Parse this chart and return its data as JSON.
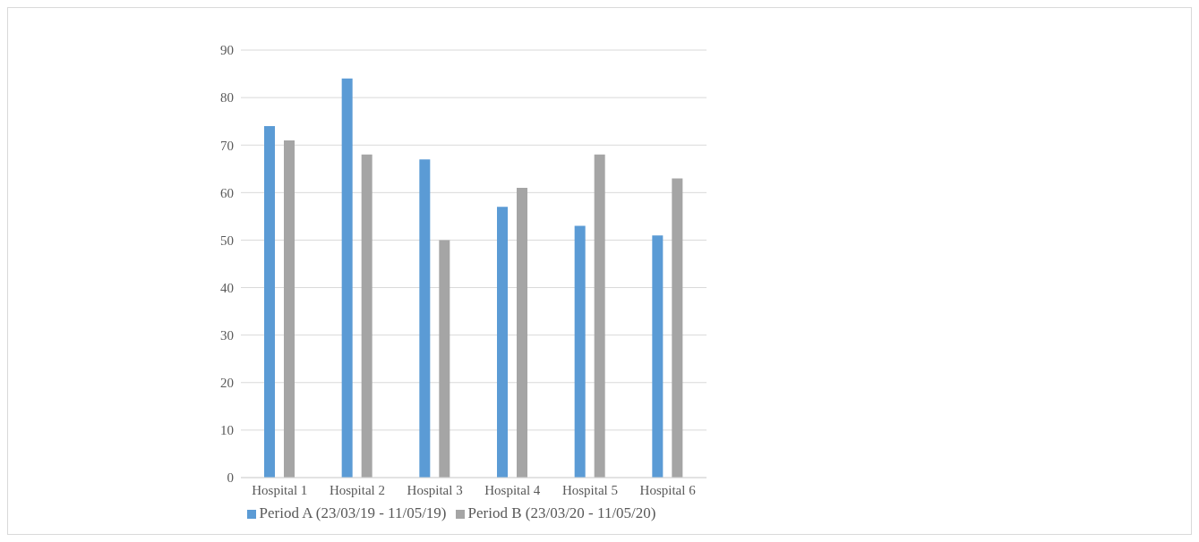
{
  "chart_data": {
    "type": "bar",
    "categories": [
      "Hospital 1",
      "Hospital 2",
      "Hospital 3",
      "Hospital 4",
      "Hospital 5",
      "Hospital 6"
    ],
    "series": [
      {
        "name": "Period A (23/03/19 - 11/05/19)",
        "color": "#5b9bd5",
        "values": [
          74,
          84,
          67,
          57,
          53,
          51
        ]
      },
      {
        "name": "Period B (23/03/20 - 11/05/20)",
        "color": "#a5a5a5",
        "values": [
          71,
          68,
          50,
          61,
          68,
          63
        ]
      }
    ],
    "ylim": [
      0,
      90
    ],
    "yticks": [
      0,
      10,
      20,
      30,
      40,
      50,
      60,
      70,
      80,
      90
    ],
    "grid": "y",
    "legend": "bottom"
  }
}
